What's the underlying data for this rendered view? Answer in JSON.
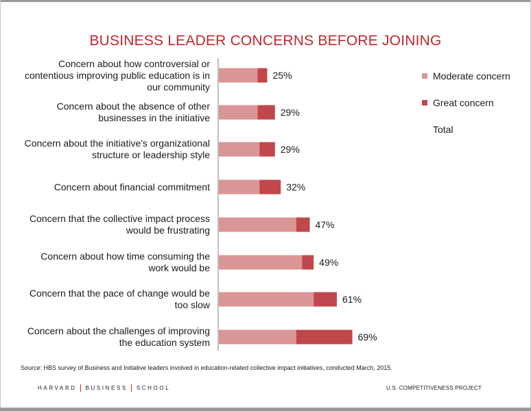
{
  "chart_data": {
    "type": "bar",
    "orientation": "horizontal",
    "stacked": true,
    "title": "BUSINESS LEADER CONCERNS BEFORE JOINING",
    "categories": [
      "Concern about how controversial or\ncontentious improving public education is in\nour community",
      "Concern about the absence of other\nbusinesses in the initiative",
      "Concern about the initiative's organizational\nstructure or leadership style",
      "Concern about financial commitment",
      "Concern that the collective impact process\nwould be frustrating",
      "Concern about how time consuming the\nwork would be",
      "Concern that the pace of change would be\ntoo slow",
      "Concern about the challenges of improving\nthe education system"
    ],
    "series": [
      {
        "name": "Moderate concern",
        "color": "#da9596",
        "values": [
          20,
          20,
          21,
          21,
          40,
          43,
          49,
          40
        ]
      },
      {
        "name": "Great concern",
        "color": "#c0474b",
        "values": [
          5,
          9,
          8,
          11,
          7,
          6,
          12,
          29
        ]
      }
    ],
    "totals": [
      25,
      29,
      29,
      32,
      47,
      49,
      61,
      69
    ],
    "total_labels": [
      "25%",
      "29%",
      "29%",
      "32%",
      "47%",
      "49%",
      "61%",
      "69%"
    ],
    "legend": {
      "placement": "right",
      "total_label": "Total"
    },
    "xlim": [
      0,
      100
    ],
    "grid": false
  },
  "footer": {
    "source": "Source: HBS survey of Business and Initiative leaders involved in education-related collective impact initiatives, conducted March, 2015.",
    "hbs_parts": [
      "HARVARD",
      "BUSINESS",
      "SCHOOL"
    ],
    "project": "U.S. COMPETITIVENESS PROJECT"
  }
}
